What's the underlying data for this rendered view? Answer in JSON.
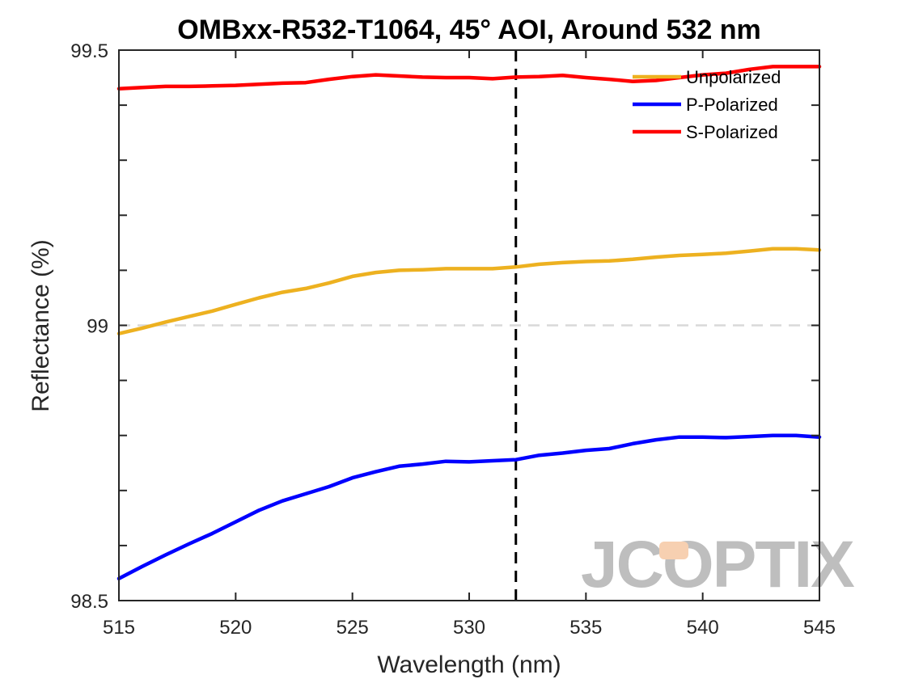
{
  "chart_data": {
    "type": "line",
    "title": "OMBxx-R532-T1064, 45° AOI, Around 532 nm",
    "xlabel": "Wavelength (nm)",
    "ylabel": "Reflectance (%)",
    "xlim": [
      515,
      545
    ],
    "ylim": [
      98.5,
      99.5
    ],
    "xticks": [
      515,
      520,
      525,
      530,
      535,
      540,
      545
    ],
    "xtick_labels": [
      "515",
      "520",
      "525",
      "530",
      "535",
      "540",
      "545"
    ],
    "yticks": [
      98.5,
      99,
      99.5
    ],
    "ytick_labels": [
      "98.5",
      "99",
      "99.5"
    ],
    "reference_hline": 99,
    "reference_vline": 532,
    "grid": false,
    "legend_position": "top-right",
    "x": [
      515,
      516,
      517,
      518,
      519,
      520,
      521,
      522,
      523,
      524,
      525,
      526,
      527,
      528,
      529,
      530,
      531,
      532,
      533,
      534,
      535,
      536,
      537,
      538,
      539,
      540,
      541,
      542,
      543,
      544,
      545
    ],
    "series": [
      {
        "name": "Unpolarized",
        "color": "#EDB120",
        "values": [
          98.985,
          98.995,
          99.006,
          99.016,
          99.026,
          99.038,
          99.05,
          99.06,
          99.067,
          99.077,
          99.089,
          99.096,
          99.1,
          99.101,
          99.103,
          99.103,
          99.103,
          99.106,
          99.111,
          99.114,
          99.116,
          99.117,
          99.12,
          99.124,
          99.127,
          99.129,
          99.131,
          99.135,
          99.139,
          99.139,
          99.137
        ]
      },
      {
        "name": "P-Polarized",
        "color": "#0000FF",
        "values": [
          98.54,
          98.562,
          98.583,
          98.603,
          98.622,
          98.643,
          98.664,
          98.681,
          98.694,
          98.707,
          98.723,
          98.734,
          98.744,
          98.748,
          98.753,
          98.752,
          98.754,
          98.756,
          98.764,
          98.768,
          98.773,
          98.776,
          98.785,
          98.792,
          98.797,
          98.797,
          98.796,
          98.798,
          98.8,
          98.8,
          98.797
        ]
      },
      {
        "name": "S-Polarized",
        "color": "#FF0000",
        "values": [
          99.43,
          99.432,
          99.434,
          99.434,
          99.435,
          99.436,
          99.438,
          99.44,
          99.441,
          99.447,
          99.452,
          99.455,
          99.453,
          99.451,
          99.45,
          99.45,
          99.448,
          99.451,
          99.452,
          99.454,
          99.45,
          99.447,
          99.443,
          99.445,
          99.45,
          99.455,
          99.458,
          99.465,
          99.47,
          99.47,
          99.47
        ]
      }
    ]
  },
  "watermark": {
    "logo_text": "JCOPTIX",
    "logo_color": "#b3b3b3",
    "accent_color": "#f6c8a4"
  }
}
